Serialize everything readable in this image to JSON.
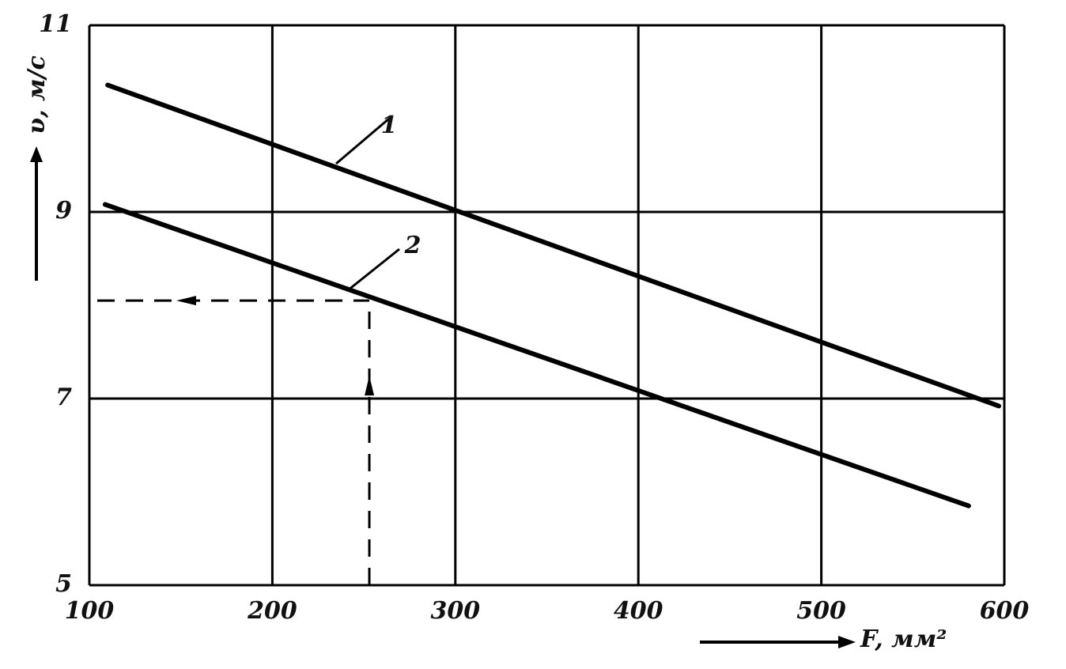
{
  "chart_data": {
    "type": "line",
    "x_label": "F, мм²",
    "y_label": "υ, м/с",
    "series": [
      {
        "name": "1",
        "color": "#000000",
        "x": [
          110,
          597
        ],
        "values": [
          10.36,
          6.92
        ]
      },
      {
        "name": "2",
        "color": "#000000",
        "x": [
          108.6,
          580.5
        ],
        "values": [
          9.08,
          5.85
        ]
      }
    ],
    "reading": {
      "x": 253,
      "y": 8.05
    },
    "xlim": [
      100,
      600
    ],
    "xticks": [
      100,
      200,
      300,
      400,
      500,
      600
    ],
    "ylim": [
      5,
      11
    ],
    "yticks": [
      5,
      7,
      9,
      11
    ],
    "grid": true
  }
}
